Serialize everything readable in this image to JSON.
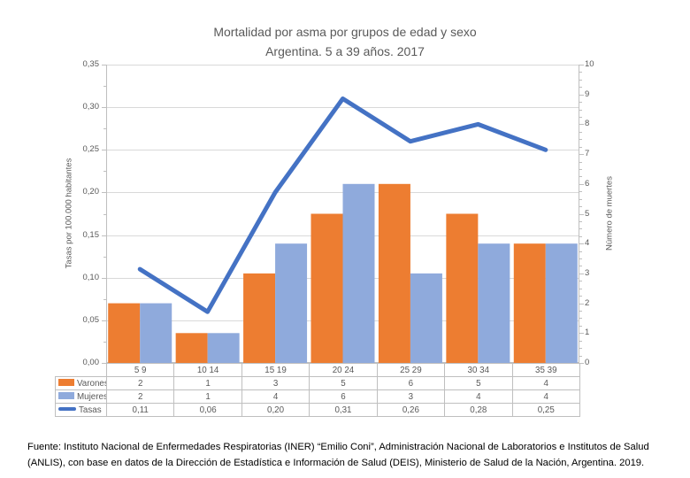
{
  "title": {
    "line1": "Mortalidad por asma por grupos de edad y sexo",
    "line2": "Argentina. 5 a 39 años. 2017"
  },
  "chart_data": {
    "type": "bar",
    "subtype": "combo bar + line, dual axis",
    "categories": [
      "5 9",
      "10 14",
      "15 19",
      "20 24",
      "25 29",
      "30 34",
      "35 39"
    ],
    "series": [
      {
        "name": "Varones",
        "type": "bar",
        "axis": "right",
        "color": "#ED7D31",
        "values": [
          2,
          1,
          3,
          5,
          6,
          5,
          4
        ],
        "labels": [
          "2",
          "1",
          "3",
          "5",
          "6",
          "5",
          "4"
        ]
      },
      {
        "name": "Mujeres",
        "type": "bar",
        "axis": "right",
        "color": "#8FAADC",
        "values": [
          2,
          1,
          4,
          6,
          3,
          4,
          4
        ],
        "labels": [
          "2",
          "1",
          "4",
          "6",
          "3",
          "4",
          "4"
        ]
      },
      {
        "name": "Tasas",
        "type": "line",
        "axis": "left",
        "color": "#4472C4",
        "values": [
          0.11,
          0.06,
          0.2,
          0.31,
          0.26,
          0.28,
          0.25
        ],
        "labels": [
          "0,11",
          "0,06",
          "0,20",
          "0,31",
          "0,26",
          "0,28",
          "0,25"
        ]
      }
    ],
    "left_axis": {
      "title": "Tasas por 100.000 habitantes",
      "min": 0,
      "max": 0.35,
      "major_step": 0.05,
      "minor_step": 0.025,
      "tick_labels": [
        "0,00",
        "0,05",
        "0,10",
        "0,15",
        "0,20",
        "0,25",
        "0,30",
        "0,35"
      ]
    },
    "right_axis": {
      "title": "Número de muertes",
      "min": 0,
      "max": 10,
      "major_step": 1,
      "minor_step": 0.25,
      "tick_labels": [
        "0",
        "1",
        "2",
        "3",
        "4",
        "5",
        "6",
        "7",
        "8",
        "9",
        "10"
      ]
    },
    "grid": true,
    "legend_position": "bottom data table"
  },
  "colors": {
    "grid": "#D9D9D9",
    "axis": "#BFBFBF",
    "chart_text": "#595959",
    "footer_text": "#000000"
  },
  "footer": {
    "source": "Fuente: Instituto Nacional de Enfermedades Respiratorias (INER) “Emilio Coni”, Administración Nacional de Laboratorios e Institutos de Salud (ANLIS), con base en datos de la Dirección de Estadística e Información de Salud (DEIS), Ministerio de Salud de la Nación, Argentina. 2019."
  }
}
